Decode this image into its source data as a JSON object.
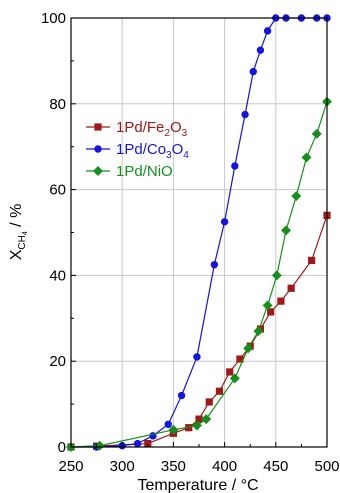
{
  "chart_data": {
    "type": "line",
    "xlabel": "Temperature / °C",
    "ylabel_main": "X",
    "ylabel_sub": "CH",
    "ylabel_subsub": "4",
    "ylabel_unit": " / %",
    "xlim": [
      250,
      500
    ],
    "ylim": [
      0,
      100
    ],
    "xticks": [
      250,
      300,
      350,
      400,
      450,
      500
    ],
    "yticks": [
      0,
      20,
      40,
      60,
      80,
      100
    ],
    "grid": true,
    "legend_position": "upper-left",
    "series": [
      {
        "name": "1Pd/Fe2O3",
        "legend_parts": [
          {
            "t": "1Pd/Fe",
            "sub": false
          },
          {
            "t": "2",
            "sub": true
          },
          {
            "t": "O",
            "sub": false
          },
          {
            "t": "3",
            "sub": true
          }
        ],
        "color": "#a01818",
        "marker": "square",
        "x": [
          250,
          275,
          325,
          350,
          365,
          375,
          385,
          395,
          405,
          415,
          425,
          435,
          445,
          455,
          465,
          485,
          500
        ],
        "y": [
          0,
          0.2,
          0.8,
          3.2,
          4.5,
          6.5,
          10.5,
          13,
          17.5,
          20.5,
          23.5,
          27.5,
          31.5,
          34,
          37,
          43.5,
          54
        ]
      },
      {
        "name": "1Pd/Co3O4",
        "legend_parts": [
          {
            "t": "1Pd/Co",
            "sub": false
          },
          {
            "t": "3",
            "sub": true
          },
          {
            "t": "O",
            "sub": false
          },
          {
            "t": "4",
            "sub": true
          }
        ],
        "color": "#1414e0",
        "marker": "circle",
        "x": [
          250,
          275,
          300,
          315,
          330,
          345,
          358,
          373,
          390,
          400,
          410,
          420,
          428,
          435,
          442,
          450,
          460,
          475,
          490,
          500
        ],
        "y": [
          0,
          0,
          0.3,
          0.8,
          2.6,
          5.3,
          12,
          21,
          42.5,
          52.5,
          65.5,
          77.5,
          87.5,
          92.5,
          97,
          100,
          100,
          100,
          100,
          100
        ]
      },
      {
        "name": "1Pd/NiO",
        "legend_parts": [
          {
            "t": "1Pd/NiO",
            "sub": false
          }
        ],
        "color": "#14901a",
        "marker": "diamond",
        "x": [
          250,
          278,
          350,
          373,
          382,
          410,
          423,
          433,
          442,
          451,
          460,
          470,
          480,
          490,
          500
        ],
        "y": [
          0,
          0.3,
          4,
          5,
          6.5,
          16,
          23,
          27,
          33,
          40,
          50.5,
          58.5,
          67.5,
          73,
          80.5
        ]
      }
    ]
  }
}
